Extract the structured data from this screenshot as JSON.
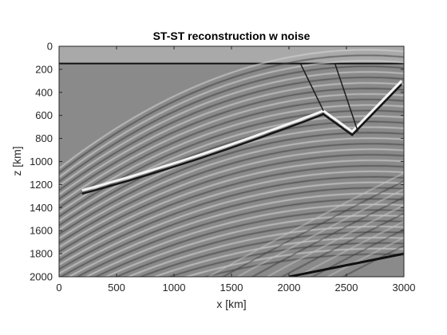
{
  "chart_data": {
    "type": "heatmap",
    "title": "ST-ST reconstruction w noise",
    "xlabel": "x [km]",
    "ylabel": "z [km]",
    "xlim": [
      0,
      3000
    ],
    "ylim": [
      0,
      2000
    ],
    "y_reversed": true,
    "x_ticks": [
      0,
      500,
      1000,
      1500,
      2000,
      2500,
      3000
    ],
    "y_ticks": [
      0,
      200,
      400,
      600,
      800,
      1000,
      1200,
      1400,
      1600,
      1800,
      2000
    ],
    "colormap": "gray",
    "grid": false,
    "legend": "none",
    "colors": {
      "background_gray": "#8a8a8a",
      "water_layer": "#a9a9a9",
      "axis": "#262626"
    }
  }
}
